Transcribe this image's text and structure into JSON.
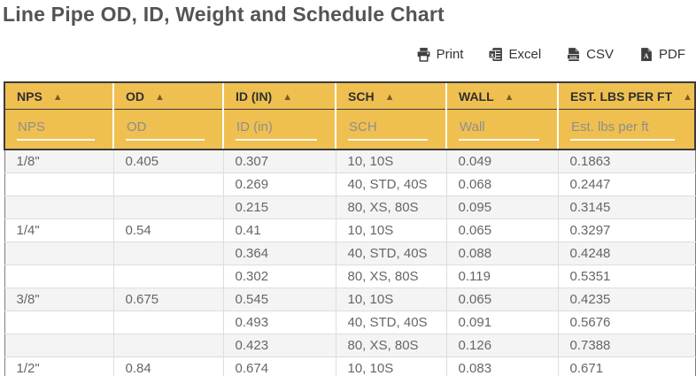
{
  "page": {
    "title": "Line Pipe OD, ID, Weight and Schedule Chart"
  },
  "toolbar": {
    "buttons": [
      {
        "label": "Print",
        "icon": "printer-icon"
      },
      {
        "label": "Excel",
        "icon": "excel-icon"
      },
      {
        "label": "CSV",
        "icon": "csv-icon"
      },
      {
        "label": "PDF",
        "icon": "pdf-icon"
      }
    ]
  },
  "table": {
    "sort_icon": "▲",
    "columns": [
      {
        "label": "NPS",
        "filter_placeholder": "NPS"
      },
      {
        "label": "OD",
        "filter_placeholder": "OD"
      },
      {
        "label": "ID (IN)",
        "filter_placeholder": "ID (in)"
      },
      {
        "label": "SCH",
        "filter_placeholder": "SCH"
      },
      {
        "label": "WALL",
        "filter_placeholder": "Wall"
      },
      {
        "label": "EST. LBS PER FT",
        "filter_placeholder": "Est. lbs per ft"
      }
    ],
    "rows": [
      [
        "1/8\"",
        "0.405",
        "0.307",
        "10, 10S",
        "0.049",
        "0.1863"
      ],
      [
        "",
        "",
        "0.269",
        "40, STD, 40S",
        "0.068",
        "0.2447"
      ],
      [
        "",
        "",
        "0.215",
        "80, XS, 80S",
        "0.095",
        "0.3145"
      ],
      [
        "1/4\"",
        "0.54",
        "0.41",
        "10, 10S",
        "0.065",
        "0.3297"
      ],
      [
        "",
        "",
        "0.364",
        "40, STD, 40S",
        "0.088",
        "0.4248"
      ],
      [
        "",
        "",
        "0.302",
        "80, XS, 80S",
        "0.119",
        "0.5351"
      ],
      [
        "3/8\"",
        "0.675",
        "0.545",
        "10, 10S",
        "0.065",
        "0.4235"
      ],
      [
        "",
        "",
        "0.493",
        "40, STD, 40S",
        "0.091",
        "0.5676"
      ],
      [
        "",
        "",
        "0.423",
        "80, XS, 80S",
        "0.126",
        "0.7388"
      ],
      [
        "1/2\"",
        "0.84",
        "0.674",
        "10, 10S",
        "0.083",
        "0.671"
      ]
    ]
  },
  "colors": {
    "header_bg": "#EFC050",
    "header_text": "#2F2F2F",
    "sort_arrow": "#7C5A1C",
    "dark_border": "#3B3B3B",
    "row_stripe": "#F4F4F4",
    "cell_border": "#DDDDDD",
    "cell_text": "#666666",
    "title_text": "#545454"
  }
}
